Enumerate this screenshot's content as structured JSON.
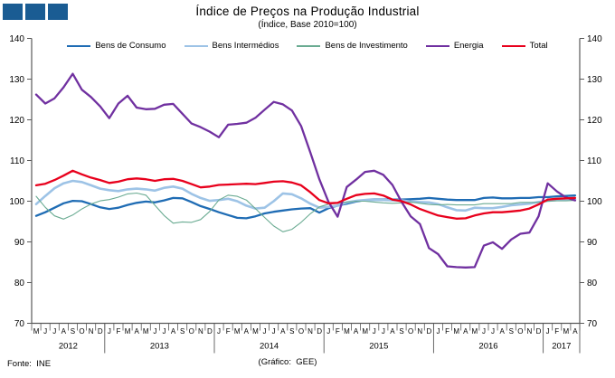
{
  "header": {
    "title": "Índice de Preços na Produção Industrial",
    "subtitle": "(Índice, Base 2010=100)"
  },
  "footer": {
    "source": "Fonte:  INE",
    "credit": "(Gráfico:  GEE)"
  },
  "logo": {
    "square_color": "#1a5c93",
    "square_count": 3
  },
  "colors": {
    "axis": "#595959",
    "text": "#000000",
    "background": "#ffffff"
  },
  "chart_data": {
    "type": "line",
    "title": "Índice de Preços na Produção Industrial",
    "subtitle": "(Índice, Base 2010=100)",
    "ylabel": "",
    "xlabel": "",
    "ylim": [
      70,
      140
    ],
    "yticks": [
      70,
      80,
      90,
      100,
      110,
      120,
      130,
      140
    ],
    "grid": false,
    "legend_position": "top",
    "x_axis_years": [
      {
        "label": "2012",
        "months": [
          "M",
          "J",
          "J",
          "A",
          "S",
          "O",
          "N",
          "D"
        ]
      },
      {
        "label": "2013",
        "months": [
          "J",
          "F",
          "M",
          "A",
          "M",
          "J",
          "J",
          "A",
          "S",
          "O",
          "N",
          "D"
        ]
      },
      {
        "label": "2014",
        "months": [
          "J",
          "F",
          "M",
          "A",
          "M",
          "J",
          "J",
          "A",
          "S",
          "O",
          "N",
          "D"
        ]
      },
      {
        "label": "2015",
        "months": [
          "J",
          "F",
          "M",
          "A",
          "M",
          "J",
          "J",
          "A",
          "S",
          "O",
          "N",
          "D"
        ]
      },
      {
        "label": "2016",
        "months": [
          "J",
          "F",
          "M",
          "A",
          "M",
          "J",
          "J",
          "A",
          "S",
          "O",
          "N",
          "D"
        ]
      },
      {
        "label": "2017",
        "months": [
          "J",
          "F",
          "M",
          "A"
        ]
      }
    ],
    "series": [
      {
        "name": "Bens de Consumo",
        "color": "#1f6cb4",
        "width": 2.3,
        "values": [
          96.4,
          97.3,
          98.4,
          99.5,
          100.1,
          100.0,
          99.3,
          98.5,
          98.1,
          98.4,
          99.1,
          99.6,
          99.9,
          99.7,
          100.2,
          100.8,
          100.7,
          99.8,
          98.8,
          98.1,
          97.3,
          96.6,
          95.9,
          95.8,
          96.3,
          97.0,
          97.4,
          97.7,
          98.0,
          98.2,
          98.3,
          97.2,
          98.3,
          98.9,
          99.4,
          99.9,
          100.3,
          100.4,
          100.4,
          100.4,
          100.4,
          100.5,
          100.6,
          100.8,
          100.6,
          100.4,
          100.3,
          100.3,
          100.3,
          100.8,
          100.9,
          100.7,
          100.7,
          100.8,
          100.8,
          101.0,
          101.0,
          101.2,
          101.3,
          101.4
        ]
      },
      {
        "name": "Bens Intermédios",
        "color": "#9dc3e6",
        "width": 2.6,
        "values": [
          99.3,
          101.3,
          103.2,
          104.4,
          105.0,
          104.7,
          103.9,
          103.1,
          102.7,
          102.5,
          102.9,
          103.1,
          102.9,
          102.6,
          103.3,
          103.6,
          103.1,
          101.8,
          100.8,
          100.1,
          100.3,
          100.6,
          100.0,
          98.9,
          98.2,
          98.4,
          100.0,
          101.9,
          101.7,
          100.7,
          99.4,
          98.4,
          98.6,
          98.9,
          99.7,
          100.1,
          100.3,
          100.3,
          100.3,
          100.2,
          100.2,
          99.9,
          99.8,
          99.7,
          99.3,
          98.5,
          97.8,
          97.7,
          98.4,
          98.3,
          98.3,
          98.6,
          99.0,
          99.2,
          99.4,
          99.8,
          100.1,
          100.3,
          100.4,
          100.4
        ]
      },
      {
        "name": "Bens de Investimento",
        "color": "#6aab92",
        "width": 1.1,
        "values": [
          101.2,
          98.5,
          96.4,
          95.6,
          96.6,
          98.1,
          99.3,
          100.1,
          100.4,
          101.0,
          101.8,
          102.0,
          101.5,
          99.0,
          96.5,
          94.6,
          94.9,
          94.8,
          95.5,
          97.5,
          100.3,
          101.5,
          101.2,
          100.3,
          98.2,
          96.0,
          93.9,
          92.5,
          93.1,
          94.8,
          96.9,
          98.6,
          99.3,
          99.5,
          99.8,
          100.0,
          100.0,
          99.8,
          99.6,
          99.5,
          99.6,
          99.8,
          99.5,
          99.2,
          99.1,
          99.2,
          99.1,
          99.1,
          99.1,
          99.4,
          99.4,
          99.4,
          99.4,
          99.7,
          99.7,
          99.7,
          100.0,
          100.1,
          100.1,
          100.2
        ]
      },
      {
        "name": "Energia",
        "color": "#7030a0",
        "width": 2.3,
        "values": [
          126.2,
          124.0,
          125.3,
          128.0,
          131.3,
          127.4,
          125.6,
          123.3,
          120.4,
          124.0,
          125.9,
          123.0,
          122.6,
          122.7,
          123.7,
          123.9,
          121.5,
          119.1,
          118.2,
          117.1,
          115.7,
          118.8,
          119.0,
          119.3,
          120.5,
          122.5,
          124.4,
          123.8,
          122.3,
          118.5,
          112.0,
          105.4,
          99.8,
          96.2,
          103.5,
          105.3,
          107.2,
          107.5,
          106.5,
          104.0,
          99.8,
          96.3,
          94.4,
          88.5,
          87.0,
          84.0,
          83.8,
          83.7,
          83.8,
          89.1,
          89.9,
          88.3,
          90.6,
          92.0,
          92.3,
          96.3,
          104.4,
          102.4,
          100.9,
          100.2
        ]
      },
      {
        "name": "Total",
        "color": "#e8001c",
        "width": 2.3,
        "values": [
          103.9,
          104.3,
          105.2,
          106.3,
          107.5,
          106.6,
          105.8,
          105.2,
          104.5,
          104.8,
          105.4,
          105.6,
          105.4,
          105.0,
          105.4,
          105.5,
          105.0,
          104.2,
          103.4,
          103.6,
          104.0,
          104.1,
          104.2,
          104.3,
          104.2,
          104.5,
          104.8,
          104.9,
          104.6,
          103.9,
          102.2,
          100.3,
          99.5,
          99.6,
          100.6,
          101.5,
          101.8,
          101.9,
          101.4,
          100.4,
          100.0,
          99.2,
          98.1,
          97.3,
          96.5,
          96.1,
          95.7,
          95.8,
          96.5,
          97.0,
          97.3,
          97.3,
          97.5,
          97.7,
          98.2,
          99.2,
          100.4,
          100.6,
          100.7,
          100.8
        ]
      }
    ]
  }
}
